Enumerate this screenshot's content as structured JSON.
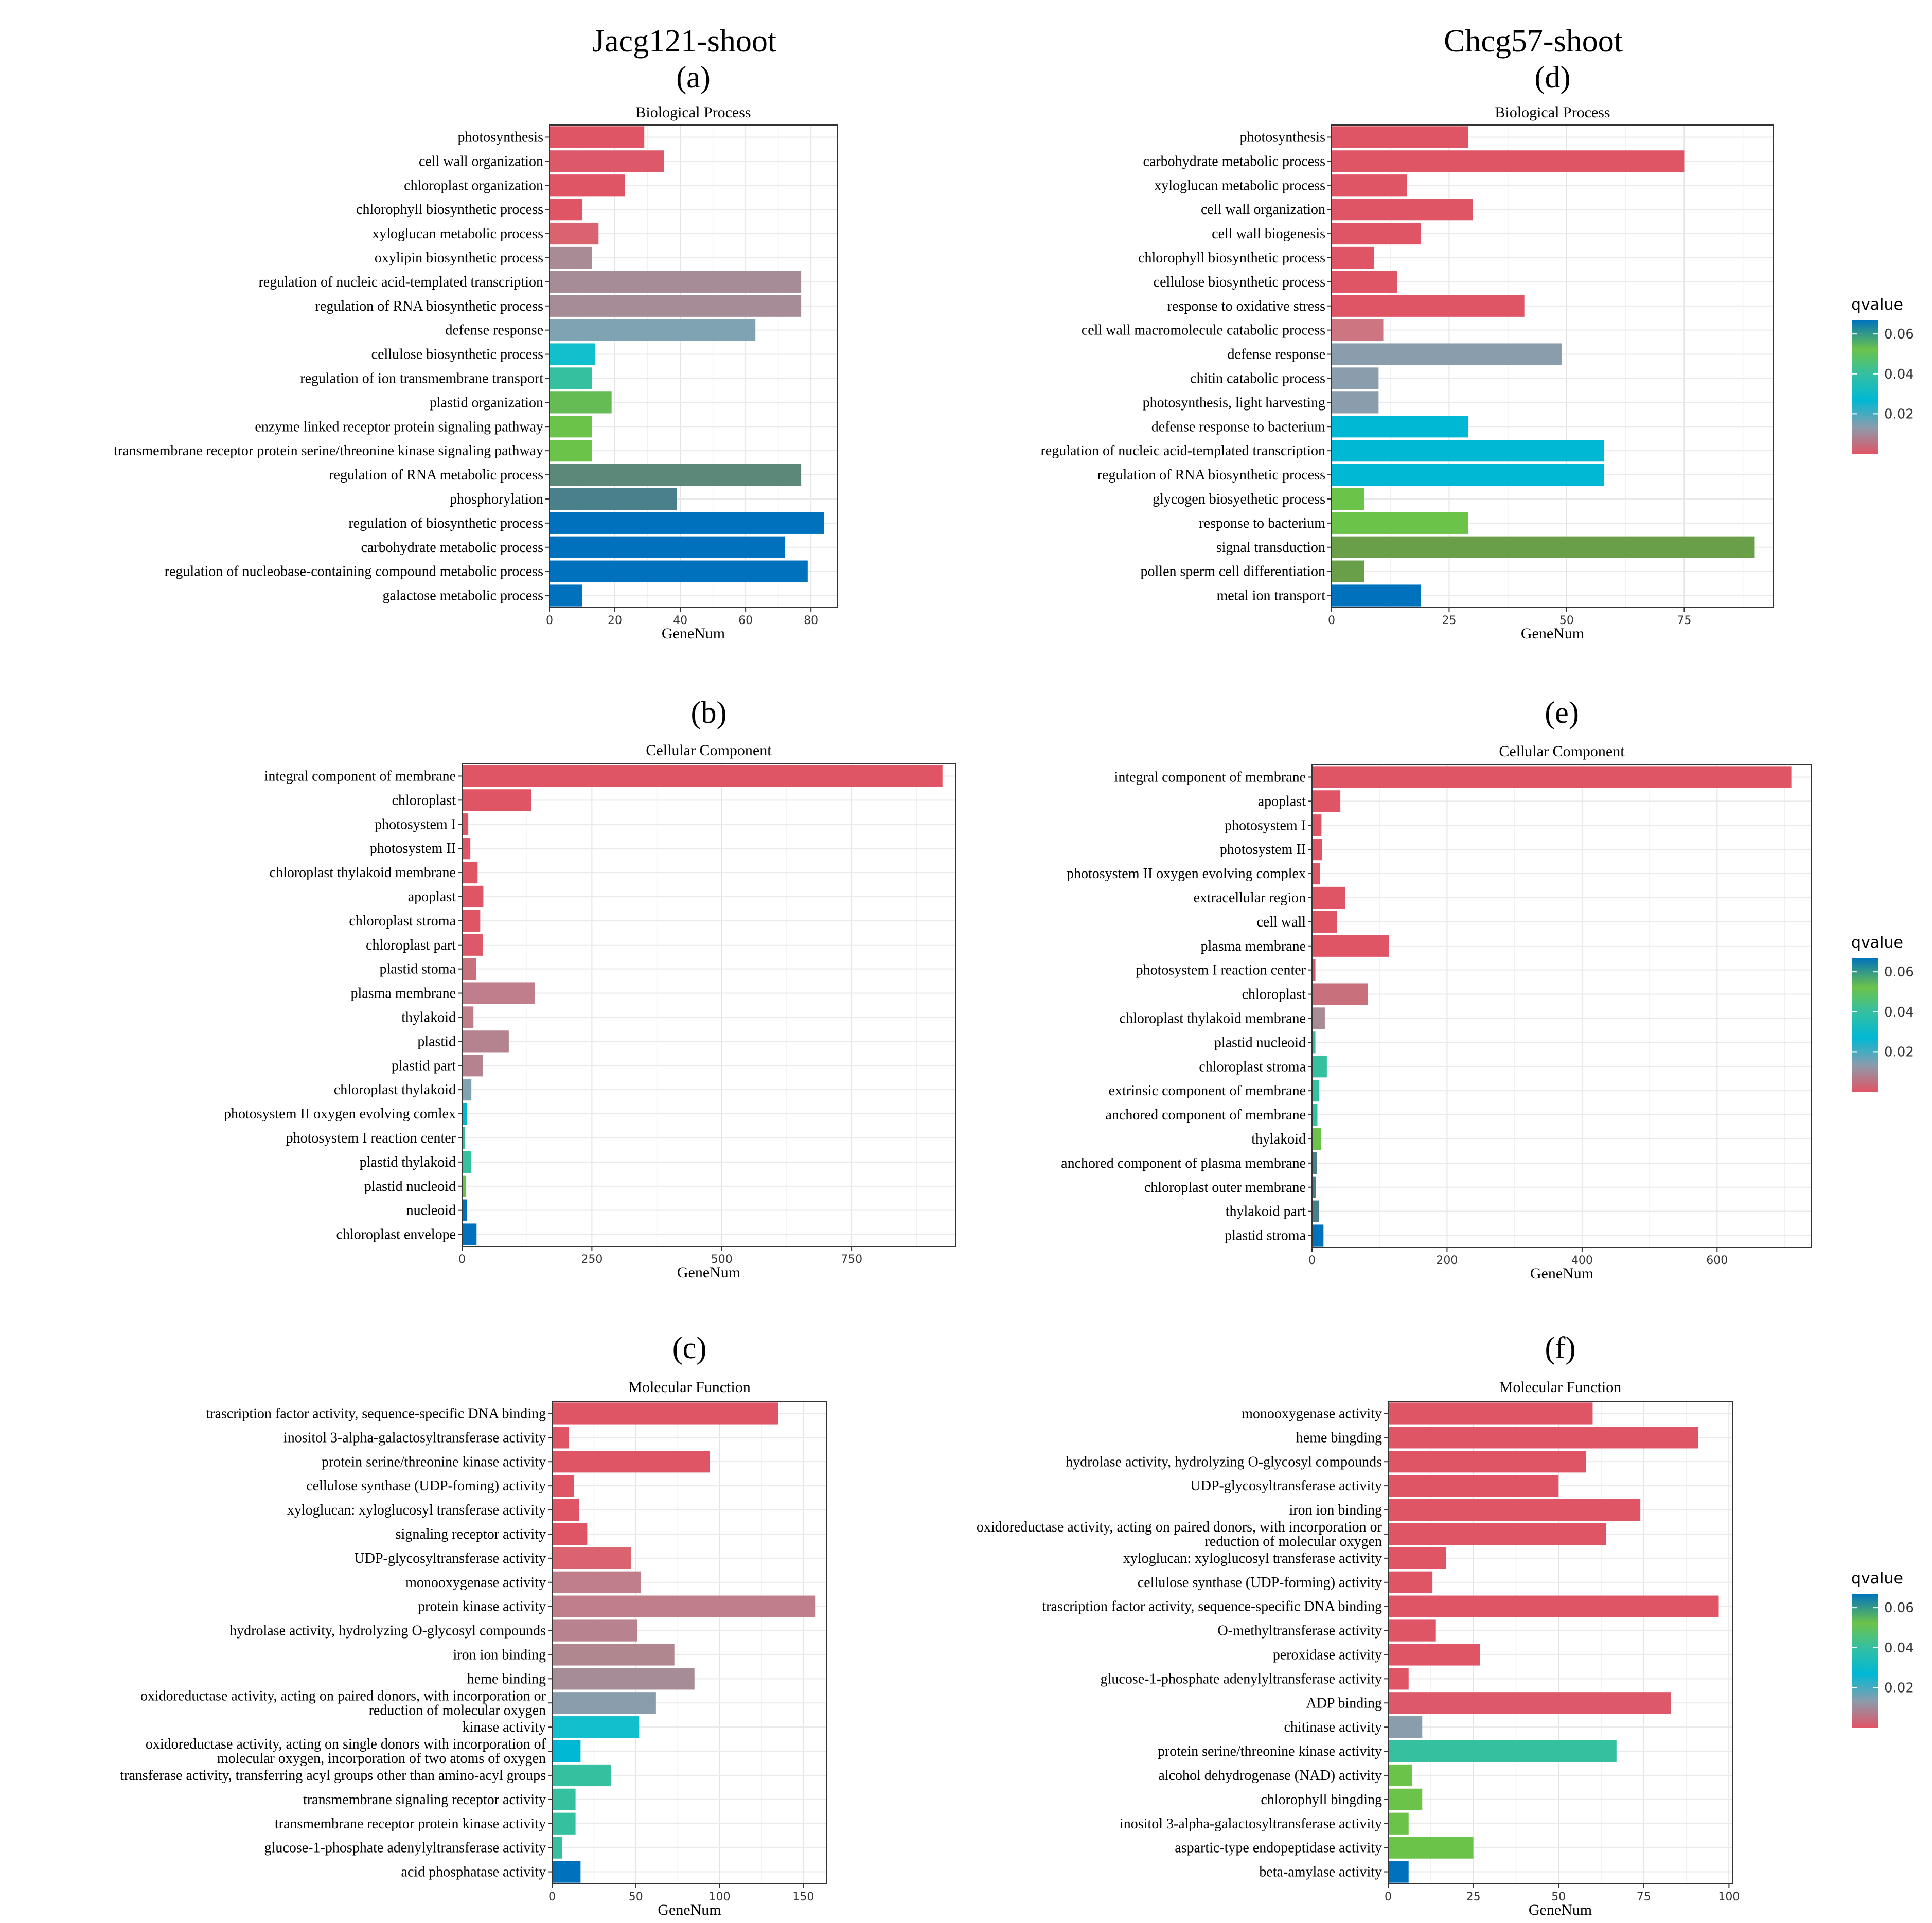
{
  "columns": [
    {
      "title": "Jacg121-shoot"
    },
    {
      "title": "Chcg57-shoot"
    }
  ],
  "legend": {
    "title": "qvalue",
    "ticks": [
      "0.06",
      "0.04",
      "0.02"
    ],
    "colors": [
      "#e05566",
      "#8a9dad",
      "#00b8d4",
      "#35c0a0",
      "#6cc34a",
      "#0072bd"
    ]
  },
  "chart_data": [
    {
      "id": "a",
      "letter": "(a)",
      "type": "bar",
      "orientation": "horizontal",
      "title": "Biological Process",
      "xlabel": "GeneNum",
      "xlim": [
        0,
        88
      ],
      "xticks": [
        0,
        20,
        40,
        60,
        80
      ],
      "xtick_labels": [
        "0",
        "20",
        "40",
        "60",
        "80"
      ],
      "categories": [
        "photosynthesis",
        "cell wall organization",
        "chloroplast organization",
        "chlorophyll biosynthetic process",
        "xyloglucan metabolic process",
        "oxylipin biosynthetic process",
        "regulation of nucleic acid-templated transcription",
        "regulation of RNA biosynthetic process",
        "defense response",
        "cellulose biosynthetic process",
        "regulation of ion transmembrane transport",
        "plastid organization",
        "enzyme linked receptor protein signaling pathway",
        "transmembrane receptor protein serine/threonine kinase signaling pathway",
        "regulation of RNA metabolic process",
        "phosphorylation",
        "regulation of biosynthetic process",
        "carbohydrate metabolic process",
        "regulation of nucleobase-containing compound metabolic process",
        "galactose metabolic process"
      ],
      "values": [
        29,
        35,
        23,
        10,
        15,
        13,
        77,
        77,
        63,
        14,
        13,
        19,
        13,
        13,
        77,
        39,
        84,
        72,
        79,
        10
      ],
      "colors": [
        "#e05566",
        "#dd5868",
        "#e05566",
        "#e05566",
        "#d9646f",
        "#a98b96",
        "#a58c96",
        "#a58c96",
        "#7fa3b3",
        "#12bfcc",
        "#35c0a0",
        "#65bb54",
        "#6cc34a",
        "#6cc34a",
        "#5b8878",
        "#4a7f8c",
        "#0072bd",
        "#0072bd",
        "#0072bd",
        "#0072bd"
      ]
    },
    {
      "id": "b",
      "letter": "(b)",
      "type": "bar",
      "orientation": "horizontal",
      "title": "Cellular Component",
      "xlabel": "GeneNum",
      "xlim": [
        0,
        950
      ],
      "xticks": [
        0,
        250,
        500,
        750
      ],
      "xtick_labels": [
        "0",
        "250",
        "500",
        "750"
      ],
      "categories": [
        "integral component of membrane",
        "chloroplast",
        "photosystem I",
        "photosystem II",
        "chloroplast thylakoid membrane",
        "apoplast",
        "chloroplast stroma",
        "chloroplast part",
        "plastid stoma",
        "plasma membrane",
        "thylakoid",
        "plastid",
        "plastid part",
        "chloroplast thylakoid",
        "photosystem II oxygen evolving comlex",
        "photosystem I reaction center",
        "plastid thylakoid",
        "plastid nucleoid",
        "nucleoid",
        "chloroplast envelope"
      ],
      "values": [
        925,
        133,
        12,
        16,
        30,
        41,
        35,
        40,
        27,
        140,
        22,
        90,
        40,
        18,
        10,
        6,
        18,
        8,
        10,
        28
      ],
      "colors": [
        "#e05566",
        "#e05566",
        "#e05566",
        "#e05566",
        "#e05566",
        "#e05566",
        "#e05566",
        "#dd5868",
        "#c8717d",
        "#c07e8b",
        "#c07e8b",
        "#b4838f",
        "#b4838f",
        "#82a1b1",
        "#00b8d4",
        "#35c0a0",
        "#35c0a0",
        "#6cc34a",
        "#0072bd",
        "#0072bd"
      ]
    },
    {
      "id": "c",
      "letter": "(c)",
      "type": "bar",
      "orientation": "horizontal",
      "title": "Molecular Function",
      "xlabel": "GeneNum",
      "xlim": [
        0,
        164
      ],
      "xticks": [
        0,
        50,
        100,
        150
      ],
      "xtick_labels": [
        "0",
        "50",
        "100",
        "150"
      ],
      "categories": [
        "trascription factor activity, sequence-specific DNA binding",
        "inositol 3-alpha-galactosyltransferase activity",
        "protein serine/threonine kinase activity",
        "cellulose synthase (UDP-foming) activity",
        "xyloglucan: xyloglucosyl transferase activity",
        "signaling receptor activity",
        "UDP-glycosyltransferase activity",
        "monooxygenase activity",
        "protein kinase activity",
        "hydrolase activity, hydrolyzing O-glycosyl compounds",
        "iron ion binding",
        "heme binding",
        "oxidoreductase activity, acting on paired donors, with incorporation or\nreduction of molecular oxygen",
        "kinase activity",
        "oxidoreductase activity, acting on single donors with incorporation of\nmolecular oxygen, incorporation of two atoms of oxygen",
        "transferase activity, transferring acyl groups other than amino-acyl groups",
        "transmembrane signaling receptor activity",
        "transmembrane receptor protein kinase activity",
        "glucose-1-phosphate adenylyltransferase activity",
        "acid phosphatase activity"
      ],
      "values": [
        135,
        10,
        94,
        13,
        16,
        21,
        47,
        53,
        157,
        51,
        73,
        85,
        62,
        52,
        17,
        35,
        14,
        14,
        6,
        17
      ],
      "colors": [
        "#e05566",
        "#e05566",
        "#e05566",
        "#e05566",
        "#e05566",
        "#e05566",
        "#d9646f",
        "#c07e8b",
        "#c07e8b",
        "#b8838f",
        "#b0868f",
        "#a58c96",
        "#8a9dad",
        "#12bfcc",
        "#00b8d4",
        "#35c0a0",
        "#35c0a0",
        "#35c0a0",
        "#35c0a0",
        "#0072bd"
      ]
    },
    {
      "id": "d",
      "letter": "(d)",
      "type": "bar",
      "orientation": "horizontal",
      "title": "Biological Process",
      "xlabel": "GeneNum",
      "xlim": [
        0,
        94
      ],
      "xticks": [
        0,
        25,
        50,
        75
      ],
      "xtick_labels": [
        "0",
        "25",
        "50",
        "75"
      ],
      "categories": [
        "photosynthesis",
        "carbohydrate metabolic process",
        "xyloglucan metabolic process",
        "cell wall organization",
        "cell wall biogenesis",
        "chlorophyll biosynthetic process",
        "cellulose biosynthetic process",
        "response to oxidative stress",
        "cell wall macromolecule catabolic process",
        "defense response",
        "chitin catabolic process",
        "photosynthesis, light harvesting",
        "defense response to bacterium",
        "regulation of nucleic acid-templated transcription",
        "regulation of RNA biosynthetic process",
        "glycogen biosyethetic process",
        "response to bacterium",
        "signal transduction",
        "pollen sperm cell differentiation",
        "metal ion transport"
      ],
      "values": [
        29,
        75,
        16,
        30,
        19,
        9,
        14,
        41,
        11,
        49,
        10,
        10,
        29,
        58,
        58,
        7,
        29,
        90,
        7,
        19
      ],
      "colors": [
        "#e05566",
        "#e05566",
        "#e05566",
        "#e05566",
        "#e05566",
        "#e05566",
        "#e05566",
        "#e05566",
        "#cd7580",
        "#8a9dad",
        "#8a9dad",
        "#8a9dad",
        "#00b8d4",
        "#00b8d4",
        "#00b8d4",
        "#6cc34a",
        "#6cc34a",
        "#6a9f4a",
        "#6a9f4a",
        "#0072bd"
      ]
    },
    {
      "id": "e",
      "letter": "(e)",
      "type": "bar",
      "orientation": "horizontal",
      "title": "Cellular Component",
      "xlabel": "GeneNum",
      "xlim": [
        0,
        740
      ],
      "xticks": [
        0,
        200,
        400,
        600
      ],
      "xtick_labels": [
        "0",
        "200",
        "400",
        "600"
      ],
      "categories": [
        "integral component of membrane",
        "apoplast",
        "photosystem I",
        "photosystem II",
        "photosystem II oxygen evolving complex",
        "extracellular region",
        "cell wall",
        "plasma membrane",
        "photosystem I reaction center",
        "chloroplast",
        "chloroplast thylakoid membrane",
        "plastid nucleoid",
        "chloroplast stroma",
        "extrinsic component of membrane",
        "anchored component of membrane",
        "thylakoid",
        "anchored component of plasma membrane",
        "chloroplast outer membrane",
        "thylakoid part",
        "plastid stroma"
      ],
      "values": [
        710,
        42,
        14,
        15,
        12,
        49,
        37,
        114,
        5,
        83,
        19,
        5,
        22,
        10,
        8,
        13,
        7,
        6,
        10,
        17
      ],
      "colors": [
        "#e05566",
        "#e05566",
        "#e05566",
        "#e05566",
        "#e05566",
        "#e05566",
        "#e05566",
        "#e05566",
        "#e05566",
        "#c8717d",
        "#a98b96",
        "#35c0a0",
        "#35c0a0",
        "#35c0a0",
        "#35c0a0",
        "#6cc34a",
        "#4a7f8c",
        "#4a7f8c",
        "#4a7f8c",
        "#0072bd"
      ]
    },
    {
      "id": "f",
      "letter": "(f)",
      "type": "bar",
      "orientation": "horizontal",
      "title": "Molecular Function",
      "xlabel": "GeneNum",
      "xlim": [
        0,
        101
      ],
      "xticks": [
        0,
        25,
        50,
        75,
        100
      ],
      "xtick_labels": [
        "0",
        "25",
        "50",
        "75",
        "100"
      ],
      "categories": [
        "monooxygenase activity",
        "heme bingding",
        "hydrolase activity, hydrolyzing O-glycosyl compounds",
        "UDP-glycosyltransferase activity",
        "iron ion binding",
        "oxidoreductase activity, acting on paired donors, with incorporation or\nreduction of molecular oxygen",
        "xyloglucan: xyloglucosyl transferase activity",
        "cellulose synthase (UDP-forming) activity",
        "trascription factor activity, sequence-specific DNA binding",
        "O-methyltransferase activity",
        "peroxidase activity",
        "glucose-1-phosphate adenylyltransferase activity",
        "ADP binding",
        "chitinase activity",
        "protein serine/threonine kinase activity",
        "alcohol dehydrogenase (NAD) activity",
        "chlorophyll bingding",
        "inositol 3-alpha-galactosyltransferase activity",
        "aspartic-type endopeptidase activity",
        "beta-amylase activity"
      ],
      "values": [
        60,
        91,
        58,
        50,
        74,
        64,
        17,
        13,
        97,
        14,
        27,
        6,
        83,
        10,
        67,
        7,
        10,
        6,
        25,
        6
      ],
      "colors": [
        "#e05566",
        "#e05566",
        "#e05566",
        "#e05566",
        "#e05566",
        "#e05566",
        "#e05566",
        "#e05566",
        "#e05566",
        "#e05566",
        "#e05566",
        "#e05566",
        "#dd5868",
        "#8a9dad",
        "#35c0a0",
        "#6cc34a",
        "#6cc34a",
        "#6cc34a",
        "#6cc34a",
        "#0072bd"
      ]
    }
  ]
}
